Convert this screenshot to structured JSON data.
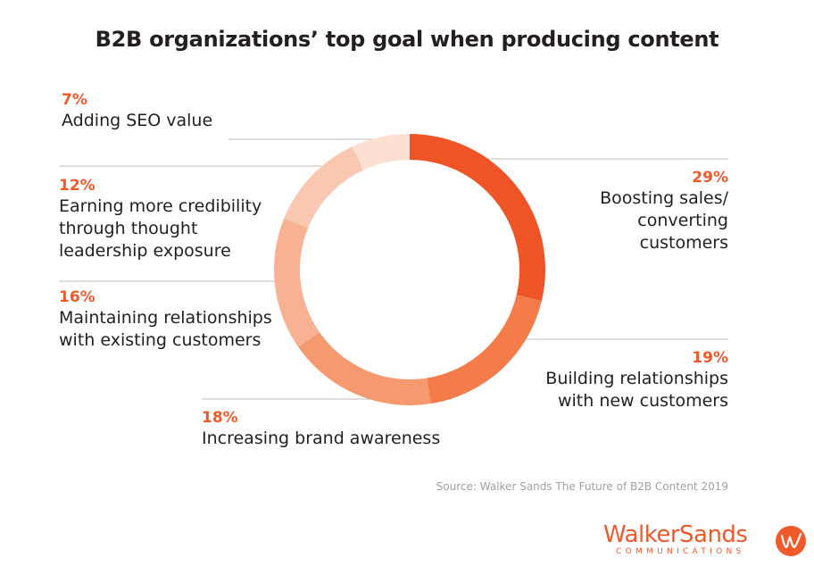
{
  "chart_data": {
    "type": "pie",
    "title": "B2B organizations’ top goal when producing content",
    "slices": [
      {
        "label_lines": [
          "Boosting sales/",
          "converting",
          "customers"
        ],
        "value": 29,
        "value_label": "29%",
        "color": "#ef5426"
      },
      {
        "label_lines": [
          "Building relationships",
          "with new customers"
        ],
        "value": 19,
        "value_label": "19%",
        "color": "#f37c4a"
      },
      {
        "label_lines": [
          "Increasing brand awareness"
        ],
        "value": 18,
        "value_label": "18%",
        "color": "#f5996e"
      },
      {
        "label_lines": [
          "Maintaining relationships",
          "with existing customers"
        ],
        "value": 16,
        "value_label": "16%",
        "color": "#f8b293"
      },
      {
        "label_lines": [
          "Earning more credibility",
          "through thought",
          "leadership exposure"
        ],
        "value": 12,
        "value_label": "12%",
        "color": "#fac8b1"
      },
      {
        "label_lines": [
          "Adding SEO value"
        ],
        "value": 7,
        "value_label": "7%",
        "color": "#fde0d2"
      }
    ],
    "donut": true
  },
  "source": "Source: Walker Sands The Future of B2B Content 2019",
  "logo": {
    "wordmark": "WalkerSands",
    "tagline": "COMMUNICATIONS"
  },
  "colors": {
    "accent": "#f0592a",
    "text": "#231f20",
    "leader": "#bdbdbd"
  }
}
